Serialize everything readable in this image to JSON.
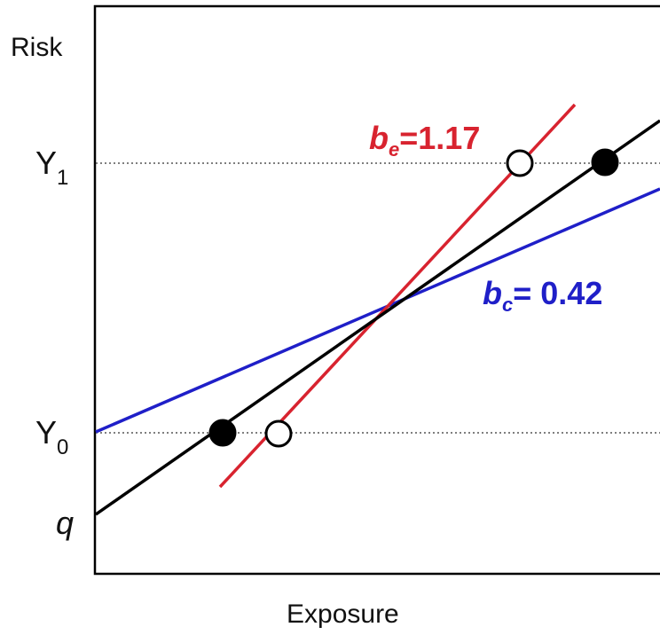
{
  "y_axis_label": "Risk",
  "x_axis_label": "Exposure",
  "ticks": {
    "y1": {
      "letter": "Y",
      "sub": "1"
    },
    "y0": {
      "letter": "Y",
      "sub": "0"
    },
    "q": "q"
  },
  "equations": {
    "be": {
      "letter": "b",
      "sub": "e",
      "value": "=1.17",
      "color": "#d8232f"
    },
    "bc": {
      "letter": "b",
      "sub": "c",
      "value": "= 0.42",
      "color": "#1f1fc8"
    }
  },
  "line_colors": {
    "black_line": "#000000",
    "red_line": "#d8232f",
    "blue_line": "#1f1fc8",
    "reference_lines": "#555555"
  },
  "markers": {
    "filled": "#000000",
    "open_fill": "#ffffff"
  }
}
